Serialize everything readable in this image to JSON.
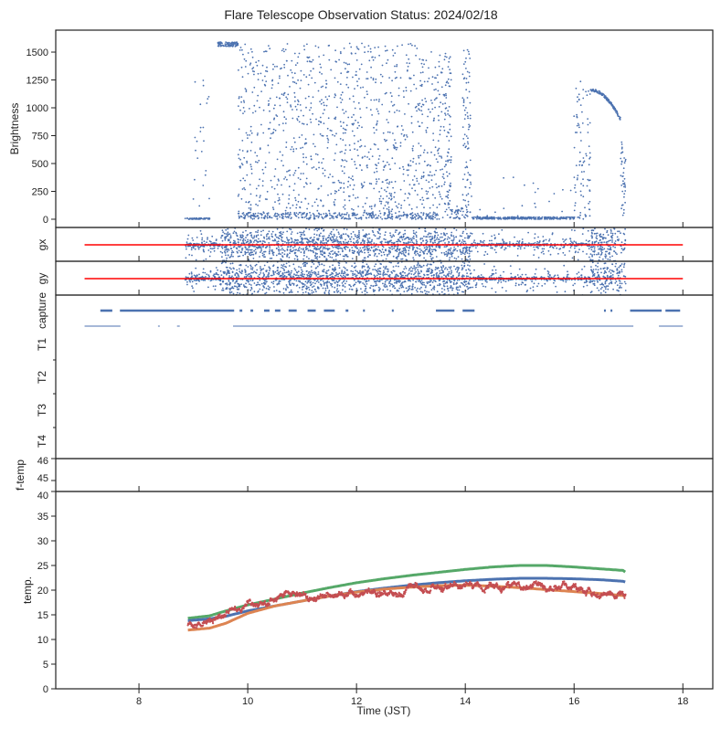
{
  "chart_data": {
    "type": "scatter",
    "title": "Flare Telescope Observation Status: 2024/02/18",
    "xlabel": "Time (JST)",
    "xlim": [
      6.47,
      18.55
    ],
    "xticks": [
      8,
      10,
      12,
      14,
      16,
      18
    ],
    "colors": {
      "points": "#4c72b0",
      "reference": "#ff0000"
    },
    "panels": {
      "brightness": {
        "ylabel": "Brightness",
        "ylim": [
          -74,
          1697
        ],
        "yticks": [
          0,
          250,
          500,
          750,
          1000,
          1250,
          1500
        ],
        "segments": [
          {
            "x": [
              8.85,
              9.3
            ],
            "y": [
              0,
              10
            ],
            "kind": "flat",
            "n": 60
          },
          {
            "x": [
              9.0,
              9.3
            ],
            "y": [
              0,
              1300
            ],
            "kind": "scatter",
            "n": 25
          },
          {
            "x": [
              9.45,
              9.82
            ],
            "y": [
              1550,
              1590
            ],
            "kind": "flat",
            "n": 90
          },
          {
            "x": [
              9.82,
              13.5
            ],
            "y": [
              0,
              1580
            ],
            "kind": "scatter",
            "n": 1100
          },
          {
            "x": [
              9.82,
              13.5
            ],
            "y": [
              0,
              60
            ],
            "kind": "flat",
            "n": 300
          },
          {
            "x": [
              13.5,
              13.75
            ],
            "y": [
              0,
              1500
            ],
            "kind": "scatter",
            "n": 130
          },
          {
            "x": [
              13.75,
              13.95
            ],
            "y": [
              0,
              120
            ],
            "kind": "scatter",
            "n": 30
          },
          {
            "x": [
              13.95,
              14.1
            ],
            "y": [
              0,
              1520
            ],
            "kind": "scatter",
            "n": 90
          },
          {
            "x": [
              14.1,
              16.0
            ],
            "y": [
              0,
              20
            ],
            "kind": "flat",
            "n": 300
          },
          {
            "x": [
              14.1,
              16.0
            ],
            "y": [
              0,
              400
            ],
            "kind": "scatter",
            "n": 25
          },
          {
            "x": [
              16.0,
              16.3
            ],
            "y": [
              0,
              1250
            ],
            "kind": "scatter",
            "n": 90
          },
          {
            "x": [
              16.3,
              16.85
            ],
            "y": [
              1160,
              900
            ],
            "kind": "curve",
            "n": 140
          },
          {
            "x": [
              16.85,
              16.95
            ],
            "y": [
              700,
              0
            ],
            "kind": "scatter",
            "n": 40
          }
        ]
      },
      "gx": {
        "ylabel": "gx",
        "reference_line": [
          7.0,
          18.0
        ],
        "scatter": [
          {
            "x": [
              8.85,
              9.5
            ],
            "density": 0.4
          },
          {
            "x": [
              9.5,
              14.1
            ],
            "density": 1.0
          },
          {
            "x": [
              14.1,
              16.3
            ],
            "density": 0.25
          },
          {
            "x": [
              16.3,
              16.95
            ],
            "density": 0.9
          }
        ]
      },
      "gy": {
        "ylabel": "gy",
        "reference_line": [
          7.0,
          18.0
        ],
        "scatter": [
          {
            "x": [
              8.85,
              9.5
            ],
            "density": 0.4
          },
          {
            "x": [
              9.5,
              14.1
            ],
            "density": 1.0
          },
          {
            "x": [
              14.1,
              16.3
            ],
            "density": 0.25
          },
          {
            "x": [
              16.3,
              16.95
            ],
            "density": 0.9
          }
        ]
      },
      "status": {
        "yticklabels": [
          "capture",
          "T1",
          "T2",
          "T3",
          "T4"
        ],
        "capture_segments": [
          [
            7.29,
            7.51
          ],
          [
            7.65,
            9.75
          ],
          [
            9.85,
            9.9
          ],
          [
            10.05,
            10.1
          ],
          [
            10.3,
            10.4
          ],
          [
            10.5,
            10.6
          ],
          [
            10.75,
            10.9
          ],
          [
            11.1,
            11.25
          ],
          [
            11.4,
            11.6
          ],
          [
            11.8,
            11.85
          ],
          [
            12.12,
            12.14
          ],
          [
            12.65,
            12.67
          ],
          [
            13.46,
            13.8
          ],
          [
            13.95,
            14.17
          ],
          [
            16.55,
            16.58
          ],
          [
            16.67,
            16.7
          ],
          [
            17.03,
            17.61
          ],
          [
            17.68,
            17.95
          ]
        ],
        "t1_segments": [
          [
            7.0,
            7.66
          ],
          [
            8.35,
            8.37
          ],
          [
            8.7,
            8.75
          ],
          [
            9.73,
            17.09
          ],
          [
            17.56,
            18.0
          ]
        ]
      },
      "ftemp": {
        "ylabel": "f-temp",
        "ylim": [
          44.5,
          46
        ],
        "yticks": [
          45,
          46
        ]
      },
      "temp": {
        "ylabel": "temp.",
        "ylim": [
          0,
          40
        ],
        "yticks": [
          0,
          5,
          10,
          15,
          20,
          25,
          30,
          35,
          40
        ],
        "x": [
          8.9,
          9.3,
          9.6,
          10,
          10.5,
          11,
          11.5,
          12,
          12.5,
          13,
          13.5,
          14,
          14.5,
          15,
          15.5,
          16,
          16.5,
          16.9,
          16.95
        ],
        "series": [
          {
            "color": "#55a868",
            "noise": 0.1,
            "y": [
              14.3,
              14.8,
              15.8,
              17.0,
              18.2,
              19.4,
              20.5,
              21.5,
              22.3,
              23.0,
              23.6,
              24.2,
              24.7,
              25.0,
              25.0,
              24.7,
              24.3,
              24.0,
              23.6
            ]
          },
          {
            "color": "#4c72b0",
            "noise": 0.1,
            "y": [
              13.8,
              14.2,
              14.7,
              15.8,
              16.8,
              17.8,
              18.8,
              19.7,
              20.4,
              21.0,
              21.5,
              21.9,
              22.2,
              22.4,
              22.4,
              22.3,
              22.1,
              21.8,
              21.6
            ]
          },
          {
            "color": "#dd8452",
            "noise": 0.1,
            "y": [
              11.9,
              12.3,
              13.3,
              15.3,
              16.8,
              17.8,
              18.8,
              19.6,
              20.2,
              20.6,
              20.9,
              21.0,
              20.8,
              20.5,
              20.1,
              19.7,
              19.3,
              18.9,
              18.6
            ]
          },
          {
            "color": "#c44e52",
            "noise": 0.8,
            "y": [
              13.0,
              13.8,
              15.5,
              17.3,
              18.2,
              18.8,
              19.2,
              19.5,
              19.9,
              20.3,
              20.6,
              21.0,
              20.8,
              20.5,
              20.2,
              19.9,
              19.6,
              19.1,
              18.8
            ]
          }
        ]
      }
    }
  }
}
